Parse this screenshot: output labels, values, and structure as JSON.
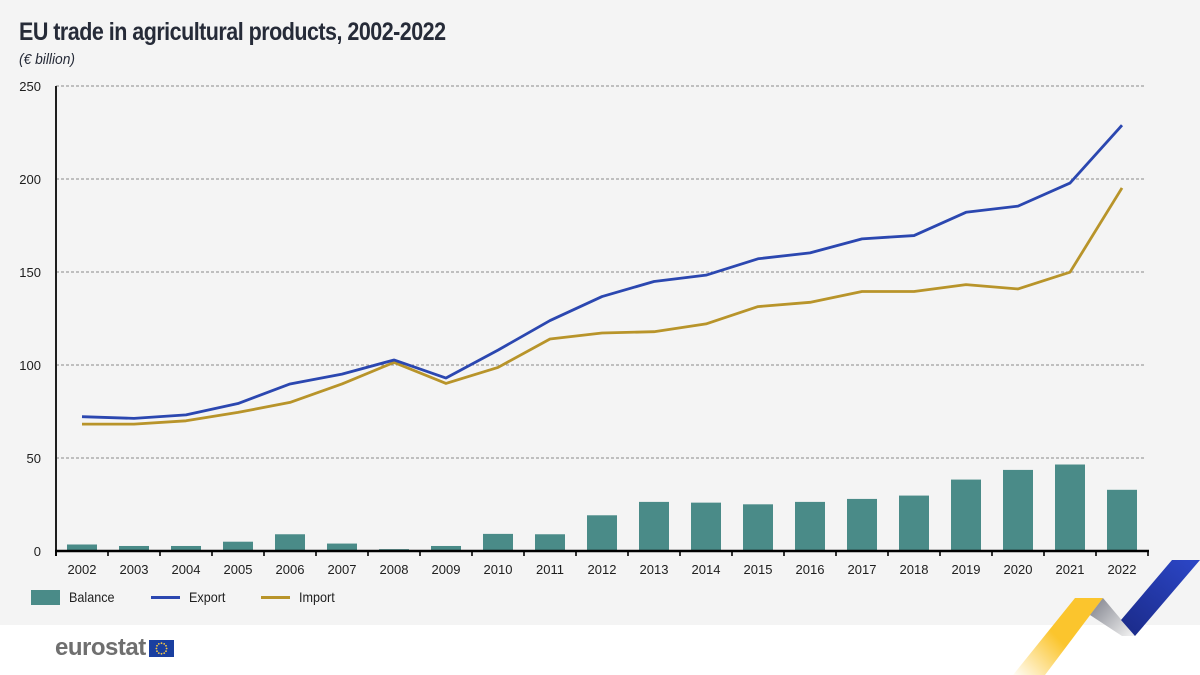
{
  "header": {
    "title": "EU trade in agricultural products, 2002-2022",
    "subtitle": "(€ billion)"
  },
  "colors": {
    "balance": "#4a8b88",
    "export": "#2b47b0",
    "import": "#b8942a",
    "background": "#f4f4f4"
  },
  "chart_data": {
    "type": "bar+line",
    "title": "EU trade in agricultural products, 2002-2022",
    "subtitle": "(€ billion)",
    "xlabel": "",
    "ylabel": "€ billion",
    "ylim": [
      0,
      250
    ],
    "yticks": [
      0,
      50,
      100,
      150,
      200,
      250
    ],
    "grid": "horizontal dashed",
    "legend_position": "bottom-left",
    "categories": [
      "2002",
      "2003",
      "2004",
      "2005",
      "2006",
      "2007",
      "2008",
      "2009",
      "2010",
      "2011",
      "2012",
      "2013",
      "2014",
      "2015",
      "2016",
      "2017",
      "2018",
      "2019",
      "2020",
      "2021",
      "2022"
    ],
    "series": [
      {
        "name": "Balance",
        "type": "bar",
        "values": [
          3.5,
          2.7,
          2.7,
          5.0,
          9.0,
          4.0,
          1.0,
          2.7,
          9.2,
          9.0,
          19.2,
          26.4,
          26.0,
          25.1,
          26.4,
          28.0,
          29.8,
          38.4,
          43.6,
          46.5,
          32.9
        ]
      },
      {
        "name": "Export",
        "type": "line",
        "values": [
          72.2,
          71.3,
          73.2,
          79.3,
          89.8,
          95.1,
          102.7,
          93.0,
          108.0,
          123.9,
          136.8,
          144.9,
          148.3,
          157.1,
          160.3,
          167.8,
          169.6,
          182.1,
          185.4,
          197.8,
          228.9
        ]
      },
      {
        "name": "Import",
        "type": "line",
        "values": [
          68.2,
          68.2,
          70.0,
          74.5,
          79.9,
          89.8,
          101.4,
          90.1,
          98.7,
          114.0,
          117.2,
          117.9,
          122.1,
          131.4,
          133.7,
          139.5,
          139.5,
          143.2,
          140.9,
          149.9,
          195.2
        ]
      }
    ]
  },
  "legend": [
    {
      "label": "Balance",
      "kind": "bar",
      "color": "#4a8b88"
    },
    {
      "label": "Export",
      "kind": "line",
      "color": "#2b47b0"
    },
    {
      "label": "Import",
      "kind": "line",
      "color": "#b8942a"
    }
  ],
  "footer": {
    "logo_text": "eurostat",
    "flag": "eu-flag-icon"
  }
}
